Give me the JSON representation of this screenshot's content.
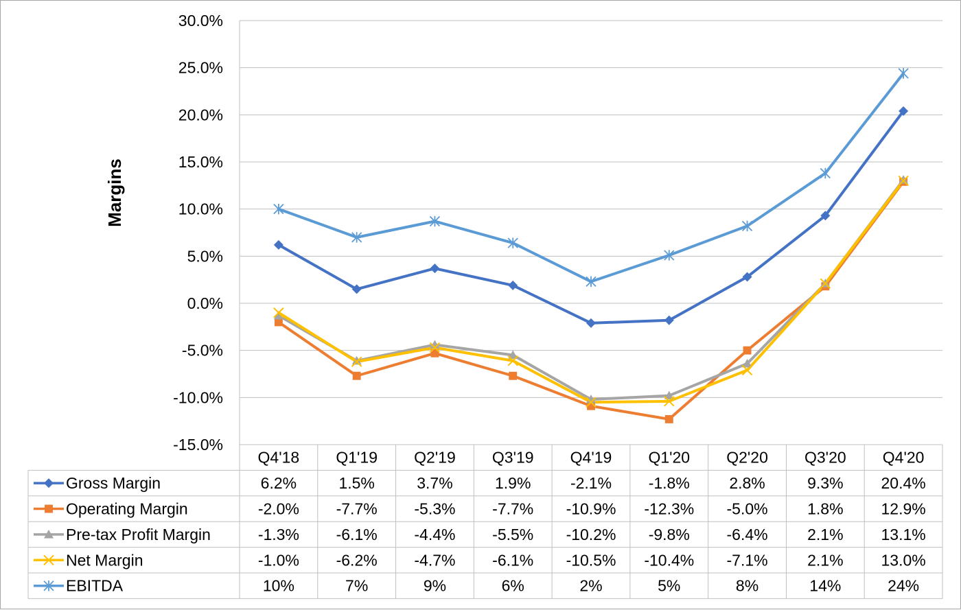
{
  "chart_data": {
    "type": "line",
    "ylabel": "Margins",
    "ylim": [
      -15,
      30
    ],
    "ytick_values": [
      30,
      25,
      20,
      15,
      10,
      5,
      0,
      -5,
      -10,
      -15
    ],
    "ytick_labels": [
      "30.0%",
      "25.0%",
      "20.0%",
      "15.0%",
      "10.0%",
      "5.0%",
      "0.0%",
      "-5.0%",
      "-10.0%",
      "-15.0%"
    ],
    "categories": [
      "Q4'18",
      "Q1'19",
      "Q2'19",
      "Q3'19",
      "Q4'19",
      "Q1'20",
      "Q2'20",
      "Q3'20",
      "Q4'20"
    ],
    "grid": true,
    "legend": "data-table",
    "series": [
      {
        "name": "Gross Margin",
        "color": "#4472c4",
        "marker": "diamond",
        "values": [
          6.2,
          1.5,
          3.7,
          1.9,
          -2.1,
          -1.8,
          2.8,
          9.3,
          20.4
        ],
        "labels": [
          "6.2%",
          "1.5%",
          "3.7%",
          "1.9%",
          "-2.1%",
          "-1.8%",
          "2.8%",
          "9.3%",
          "20.4%"
        ]
      },
      {
        "name": "Operating Margin",
        "color": "#ed7d31",
        "marker": "square",
        "values": [
          -2.0,
          -7.7,
          -5.3,
          -7.7,
          -10.9,
          -12.3,
          -5.0,
          1.8,
          12.9
        ],
        "labels": [
          "-2.0%",
          "-7.7%",
          "-5.3%",
          "-7.7%",
          "-10.9%",
          "-12.3%",
          "-5.0%",
          "1.8%",
          "12.9%"
        ]
      },
      {
        "name": "Pre-tax Profit Margin",
        "color": "#a5a5a5",
        "marker": "triangle",
        "values": [
          -1.3,
          -6.1,
          -4.4,
          -5.5,
          -10.2,
          -9.8,
          -6.4,
          2.1,
          13.1
        ],
        "labels": [
          "-1.3%",
          "-6.1%",
          "-4.4%",
          "-5.5%",
          "-10.2%",
          "-9.8%",
          "-6.4%",
          "2.1%",
          "13.1%"
        ]
      },
      {
        "name": "Net Margin",
        "color": "#ffc000",
        "marker": "x",
        "values": [
          -1.0,
          -6.2,
          -4.7,
          -6.1,
          -10.5,
          -10.4,
          -7.1,
          2.1,
          13.0
        ],
        "labels": [
          "-1.0%",
          "-6.2%",
          "-4.7%",
          "-6.1%",
          "-10.5%",
          "-10.4%",
          "-7.1%",
          "2.1%",
          "13.0%"
        ]
      },
      {
        "name": "EBITDA",
        "color": "#5b9bd5",
        "marker": "star",
        "values": [
          10,
          7,
          9,
          6,
          2,
          5,
          8,
          14,
          24
        ],
        "plot_values": [
          10.0,
          7.0,
          8.7,
          6.4,
          2.3,
          5.1,
          8.2,
          13.8,
          24.4
        ],
        "labels": [
          "10%",
          "7%",
          "9%",
          "6%",
          "2%",
          "5%",
          "8%",
          "14%",
          "24%"
        ]
      }
    ]
  }
}
